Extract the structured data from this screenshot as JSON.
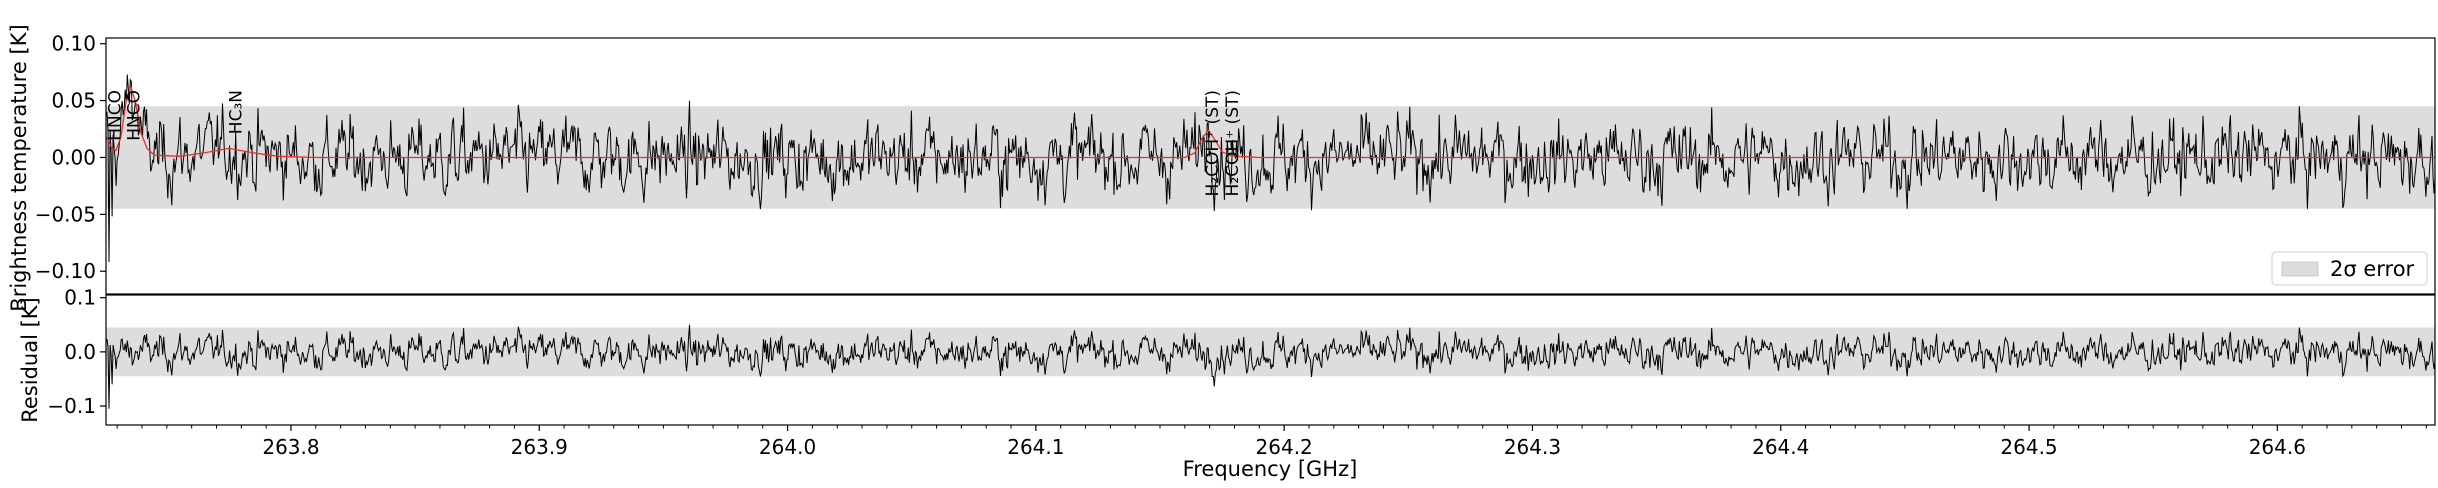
{
  "chart_data": [
    {
      "type": "line",
      "panel": "spectrum",
      "ylabel": "Brightness temperature [K]",
      "ylim": [
        -0.12,
        0.105
      ],
      "y_ticks": [
        0.1,
        0.05,
        0.0,
        -0.05,
        -0.1
      ],
      "y_tick_labels": [
        "0.10",
        "0.05",
        "0.00",
        "−0.05",
        "−0.10"
      ],
      "xlim": [
        263.7255,
        264.6635
      ],
      "grid": false,
      "legend": {
        "placement": "lower right",
        "entries": [
          {
            "label": "2σ error",
            "color": "#dddddd"
          }
        ]
      },
      "error_band": {
        "label": "2σ error",
        "y_range": [
          -0.045,
          0.045
        ],
        "color": "#dddddd"
      },
      "series": [
        {
          "kind": "observed",
          "color": "#000000",
          "note": "noise-dominated spectrum, approx ±0.05 K"
        },
        {
          "kind": "model",
          "color": "#e8302a",
          "x": [
            263.7255,
            263.728,
            263.7295,
            263.7315,
            263.7335,
            263.7355,
            263.7375,
            263.7395,
            263.742,
            263.745,
            263.755,
            263.765,
            263.775,
            263.785,
            263.795,
            263.81,
            264.16,
            264.164,
            264.167,
            264.1695,
            264.172,
            264.175,
            264.178,
            264.182,
            264.19,
            264.6635
          ],
          "y": [
            0.018,
            0.008,
            0.006,
            0.018,
            0.048,
            0.062,
            0.048,
            0.022,
            0.008,
            0.002,
            0.001,
            0.004,
            0.008,
            0.004,
            0.001,
            0.0,
            0.0,
            0.004,
            0.017,
            0.024,
            0.016,
            0.005,
            0.002,
            0.001,
            0.0,
            0.0
          ]
        }
      ],
      "line_labels": [
        {
          "x": 263.729,
          "text": "HNCO"
        },
        {
          "x": 263.7365,
          "text": "HNCO"
        },
        {
          "x": 263.7777,
          "text": "HC₃N"
        },
        {
          "x": 264.171,
          "text": "H₂COH⁺ (ST)"
        },
        {
          "x": 264.179,
          "text": "H₂COH⁺ (ST)"
        }
      ]
    },
    {
      "type": "line",
      "panel": "residual",
      "ylabel": "Residual [K]",
      "xlabel": "Frequency [GHz]",
      "ylim": [
        -0.135,
        0.105
      ],
      "y_ticks": [
        0.1,
        0.0,
        -0.1
      ],
      "y_tick_labels": [
        "0.1",
        "0.0",
        "−0.1"
      ],
      "x_ticks": [
        263.8,
        263.9,
        264.0,
        264.1,
        264.2,
        264.3,
        264.4,
        264.5,
        264.6
      ],
      "x_tick_labels": [
        "263.8",
        "263.9",
        "264.0",
        "264.1",
        "264.2",
        "264.3",
        "264.4",
        "264.5",
        "264.6"
      ],
      "xlim": [
        263.7255,
        264.6635
      ],
      "grid": false,
      "error_band": {
        "y_range": [
          -0.045,
          0.045
        ],
        "color": "#dddddd"
      },
      "series": [
        {
          "kind": "residual",
          "color": "#000000",
          "note": "observed minus model, approx ±0.05 K"
        }
      ]
    }
  ]
}
